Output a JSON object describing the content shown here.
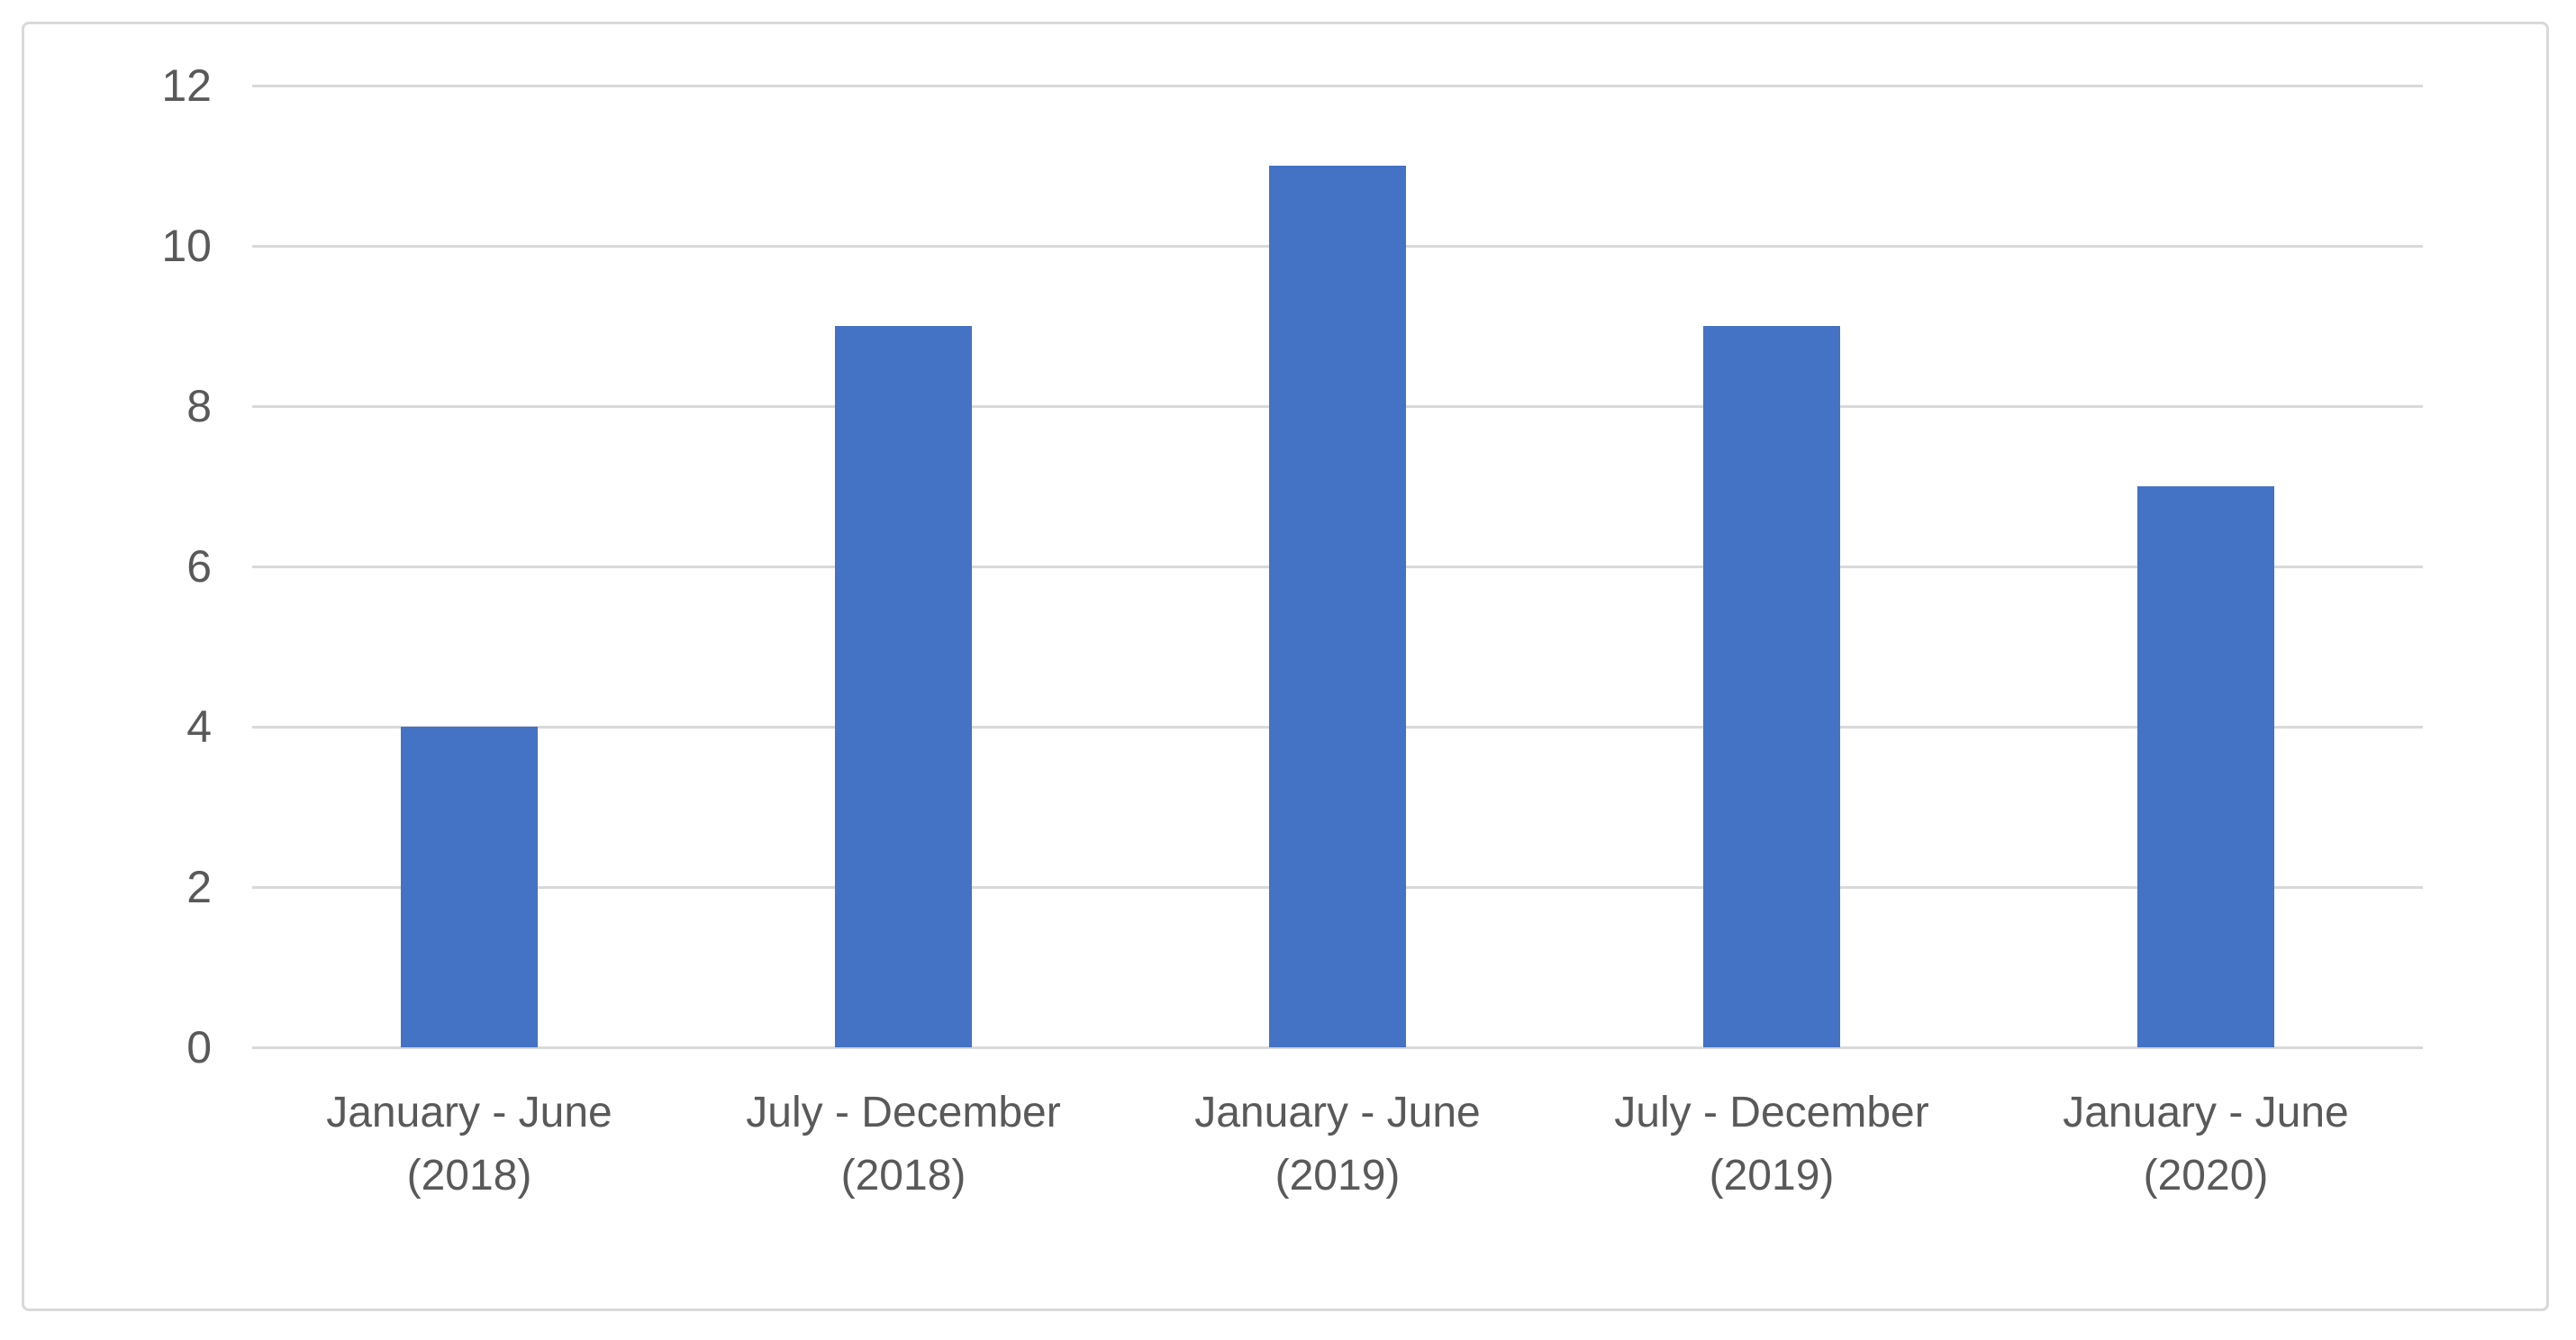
{
  "chart_data": {
    "type": "bar",
    "categories": [
      "January - June (2018)",
      "July - December (2018)",
      "January - June (2019)",
      "July - December (2019)",
      "January - June (2020)"
    ],
    "values": [
      4,
      9,
      11,
      9,
      7
    ],
    "title": "",
    "xlabel": "",
    "ylabel": "",
    "ylim": [
      0,
      12
    ],
    "yticks": [
      0,
      2,
      4,
      6,
      8,
      10,
      12
    ],
    "grid": true,
    "legend_position": "none",
    "bar_color": "#4472C4",
    "gridline_color": "#D9D9D9",
    "tick_label_color": "#595959",
    "frame_border_color": "#D9D9D9",
    "background_color": "#FFFFFF"
  }
}
